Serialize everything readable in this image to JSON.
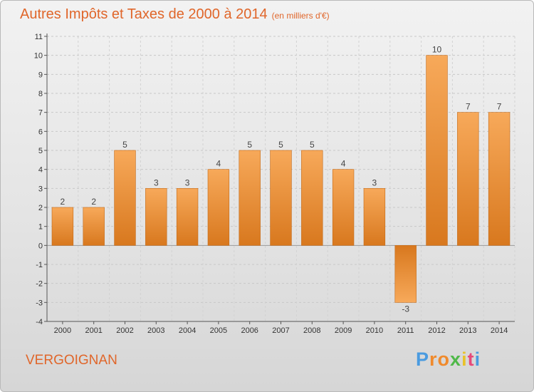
{
  "chart_data": {
    "type": "bar",
    "title": "Autres Impôts et Taxes de 2000 à 2014",
    "subtitle": "(en milliers d'€)",
    "categories": [
      "2000",
      "2001",
      "2002",
      "2003",
      "2004",
      "2005",
      "2006",
      "2007",
      "2008",
      "2009",
      "2010",
      "2011",
      "2012",
      "2013",
      "2014"
    ],
    "values": [
      2,
      2,
      5,
      3,
      3,
      4,
      5,
      5,
      5,
      4,
      3,
      -3,
      10,
      7,
      7
    ],
    "data_labels": [
      "2",
      "2",
      "5",
      "3",
      "3",
      "4",
      "5",
      "5",
      "5",
      "4",
      "3",
      "-3",
      "10",
      "7",
      "7"
    ],
    "ylim": [
      -4,
      11
    ],
    "yticks": [
      -4,
      -3,
      -2,
      -1,
      0,
      1,
      2,
      3,
      4,
      5,
      6,
      7,
      8,
      9,
      10,
      11
    ],
    "ytick_labels": [
      "-4",
      "-3",
      "-2",
      "-1",
      "0",
      "1",
      "2",
      "3",
      "4",
      "5",
      "6",
      "7",
      "8",
      "9",
      "10",
      "11"
    ],
    "grid": true,
    "bar_color": "#f0953e"
  },
  "footer": {
    "commune": "VERGOIGNAN",
    "logo_letters": [
      "P",
      "r",
      "o",
      "x",
      "i",
      "t",
      "i"
    ],
    "logo_colors": [
      "#4a9be0",
      "#f08a2c",
      "#f08a2c",
      "#4fb848",
      "#e8c22a",
      "#e64a7a",
      "#4a9be0"
    ]
  }
}
